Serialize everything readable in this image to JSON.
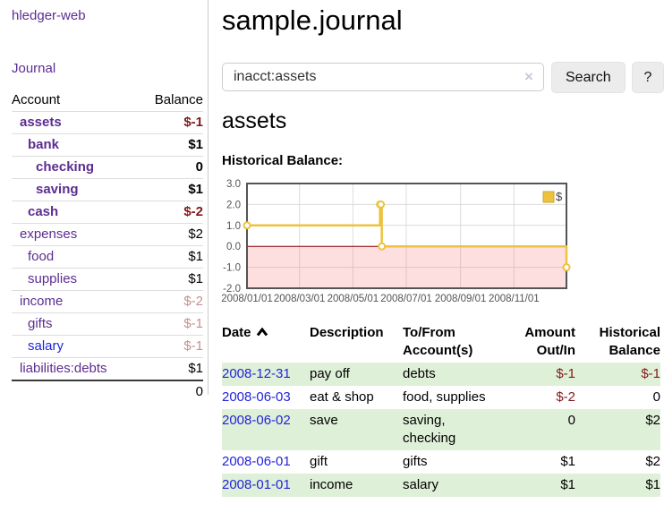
{
  "app": {
    "title": "hledger-web"
  },
  "nav": {
    "journal_label": "Journal"
  },
  "sidebar": {
    "columns": {
      "account": "Account",
      "balance": "Balance"
    },
    "accounts": [
      {
        "name": "assets",
        "balance": "$-1",
        "depth": 0,
        "selected": true
      },
      {
        "name": "bank",
        "balance": "$1",
        "depth": 1,
        "selected": true
      },
      {
        "name": "checking",
        "balance": "0",
        "depth": 2,
        "selected": true
      },
      {
        "name": "saving",
        "balance": "$1",
        "depth": 2,
        "selected": true
      },
      {
        "name": "cash",
        "balance": "$-2",
        "depth": 1,
        "selected": true
      },
      {
        "name": "expenses",
        "balance": "$2",
        "depth": 0,
        "selected": false
      },
      {
        "name": "food",
        "balance": "$1",
        "depth": 1,
        "selected": false
      },
      {
        "name": "supplies",
        "balance": "$1",
        "depth": 1,
        "selected": false
      },
      {
        "name": "income",
        "balance": "$-2",
        "depth": 0,
        "selected": false
      },
      {
        "name": "gifts",
        "balance": "$-1",
        "depth": 1,
        "selected": false
      },
      {
        "name": "salary",
        "balance": "$-1",
        "depth": 1,
        "selected": false,
        "link_style": "unvisited"
      },
      {
        "name": "liabilities:debts",
        "balance": "$1",
        "depth": 0,
        "selected": false
      }
    ],
    "total": "0"
  },
  "header": {
    "title": "sample.journal"
  },
  "search": {
    "query": "inacct:assets",
    "clear_icon": "×",
    "button": "Search",
    "help_button": "?"
  },
  "account_page": {
    "title": "assets",
    "chart_label": "Historical Balance:"
  },
  "chart_data": {
    "type": "line",
    "step": true,
    "title": "Historical Balance:",
    "series": [
      {
        "name": "$",
        "color": "#edc240",
        "x": [
          "2008-01-01",
          "2008-06-01",
          "2008-06-02",
          "2008-06-03",
          "2008-12-31"
        ],
        "values": [
          1,
          2,
          2,
          0,
          -1
        ]
      }
    ],
    "xlim": [
      "2008-01-01",
      "2008-12-31"
    ],
    "ylim": [
      -2,
      3
    ],
    "y_ticks": [
      "3.0",
      "2.0",
      "1.0",
      "0.0",
      "-1.0",
      "-2.0"
    ],
    "x_ticks": [
      {
        "label": "2008/01/01",
        "date": "2008-01-01"
      },
      {
        "label": "2008/03/01",
        "date": "2008-03-01"
      },
      {
        "label": "2008/05/01",
        "date": "2008-05-01"
      },
      {
        "label": "2008/07/01",
        "date": "2008-07-01"
      },
      {
        "label": "2008/09/01",
        "date": "2008-09-01"
      },
      {
        "label": "2008/11/01",
        "date": "2008-11-01"
      }
    ],
    "grid": true,
    "legend_position": "top-right",
    "marker": "circle-open",
    "line_color": "#edc240",
    "negative_region_color": "rgba(244,110,110,0.22)",
    "zero_line_color": "#8b0000",
    "border_color": "#545454",
    "grid_color": "#dcdcdc",
    "tick_color": "#545454"
  },
  "register": {
    "columns": [
      {
        "label": "Date",
        "sort_indicator": "up"
      },
      {
        "label": "Description"
      },
      {
        "label": "To/From Account(s)"
      },
      {
        "label": "Amount Out/In",
        "align": "right"
      },
      {
        "label": "Historical Balance",
        "align": "right"
      }
    ],
    "rows": [
      {
        "date": "2008-12-31",
        "description": "pay off",
        "accounts": "debts",
        "amount": "$-1",
        "balance": "$-1"
      },
      {
        "date": "2008-06-03",
        "description": "eat & shop",
        "accounts": "food, supplies",
        "amount": "$-2",
        "balance": "0"
      },
      {
        "date": "2008-06-02",
        "description": "save",
        "accounts": "saving, checking",
        "amount": "0",
        "balance": "$2"
      },
      {
        "date": "2008-06-01",
        "description": "gift",
        "accounts": "gifts",
        "amount": "$1",
        "balance": "$2"
      },
      {
        "date": "2008-01-01",
        "description": "income",
        "accounts": "salary",
        "amount": "$1",
        "balance": "$1"
      }
    ]
  },
  "colors": {
    "link_purple": "#5c2d91",
    "link_blue": "#2323dd",
    "negative_strong": "#821a1a",
    "negative_faded": "#c59090",
    "row_stripe_green": "#dff0d8",
    "series_gold": "#edc240"
  }
}
